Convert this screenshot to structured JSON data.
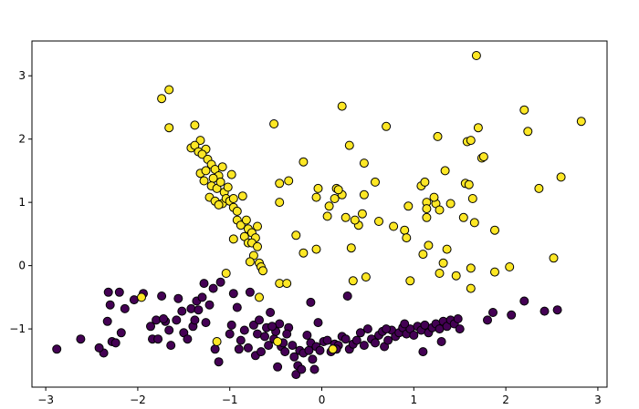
{
  "chart_data": {
    "type": "scatter",
    "title": "",
    "xlabel": "",
    "ylabel": "",
    "xlim": [
      -3.15,
      3.1
    ],
    "ylim": [
      -1.92,
      3.55
    ],
    "xticks": [
      -3,
      -2,
      -1,
      0,
      1,
      2,
      3
    ],
    "yticks": [
      -1,
      0,
      1,
      2,
      3
    ],
    "xtick_labels": [
      "−3",
      "−2",
      "−1",
      "0",
      "1",
      "2",
      "3"
    ],
    "ytick_labels": [
      "−1",
      "0",
      "1",
      "2",
      "3"
    ],
    "grid": false,
    "legend": "none",
    "point_edge_color": "#000000",
    "series": [
      {
        "class": 0,
        "color": "#440154",
        "points": [
          [
            -2.88,
            -1.32
          ],
          [
            -2.62,
            -1.16
          ],
          [
            -2.37,
            -1.38
          ],
          [
            -2.33,
            -0.88
          ],
          [
            -2.32,
            -0.42
          ],
          [
            -2.3,
            -0.62
          ],
          [
            -2.28,
            -1.2
          ],
          [
            -2.24,
            -1.22
          ],
          [
            -2.2,
            -0.42
          ],
          [
            -2.18,
            -1.06
          ],
          [
            -2.14,
            -0.68
          ],
          [
            -2.04,
            -0.54
          ],
          [
            -1.94,
            -0.44
          ],
          [
            -1.86,
            -0.96
          ],
          [
            -1.84,
            -1.16
          ],
          [
            -1.8,
            -0.86
          ],
          [
            -1.78,
            -1.16
          ],
          [
            -1.74,
            -0.48
          ],
          [
            -1.7,
            -0.88
          ],
          [
            -1.66,
            -1.02
          ],
          [
            -1.64,
            -1.26
          ],
          [
            -1.58,
            -0.86
          ],
          [
            -1.56,
            -0.52
          ],
          [
            -1.5,
            -1.06
          ],
          [
            -1.46,
            -1.16
          ],
          [
            -1.42,
            -0.68
          ],
          [
            -1.4,
            -0.96
          ],
          [
            -1.38,
            -0.86
          ],
          [
            -1.36,
            -0.56
          ],
          [
            -1.34,
            -0.7
          ],
          [
            -1.3,
            -0.5
          ],
          [
            -1.28,
            -0.28
          ],
          [
            -1.26,
            -0.9
          ],
          [
            -1.22,
            -0.62
          ],
          [
            -1.16,
            -1.32
          ],
          [
            -1.12,
            -1.52
          ],
          [
            -1.1,
            -0.26
          ],
          [
            -1.0,
            -1.08
          ],
          [
            -0.98,
            -0.94
          ],
          [
            -0.92,
            -0.66
          ],
          [
            -0.9,
            -1.32
          ],
          [
            -0.88,
            -1.18
          ],
          [
            -0.84,
            -1.02
          ],
          [
            -0.8,
            -1.3
          ],
          [
            -0.78,
            -0.42
          ],
          [
            -0.74,
            -0.94
          ],
          [
            -0.72,
            -1.42
          ],
          [
            -0.7,
            -1.08
          ],
          [
            -0.68,
            -0.86
          ],
          [
            -0.66,
            -1.36
          ],
          [
            -0.62,
            -1.12
          ],
          [
            -0.6,
            -0.98
          ],
          [
            -0.58,
            -1.26
          ],
          [
            -0.56,
            -0.74
          ],
          [
            -0.52,
            -1.16
          ],
          [
            -0.5,
            -1.04
          ],
          [
            -0.48,
            -1.6
          ],
          [
            -0.46,
            -0.92
          ],
          [
            -0.44,
            -1.28
          ],
          [
            -0.42,
            -1.22
          ],
          [
            -0.4,
            -1.36
          ],
          [
            -0.36,
            -0.98
          ],
          [
            -0.32,
            -1.26
          ],
          [
            -0.3,
            -1.44
          ],
          [
            -0.28,
            -1.72
          ],
          [
            -0.26,
            -1.58
          ],
          [
            -0.24,
            -1.34
          ],
          [
            -0.22,
            -1.64
          ],
          [
            -0.2,
            -1.38
          ],
          [
            -0.16,
            -1.1
          ],
          [
            -0.14,
            -1.34
          ],
          [
            -0.12,
            -1.22
          ],
          [
            -0.1,
            -1.48
          ],
          [
            -0.08,
            -1.64
          ],
          [
            -0.06,
            -1.28
          ],
          [
            -0.04,
            -0.9
          ],
          [
            -0.02,
            -1.34
          ],
          [
            0.02,
            -1.2
          ],
          [
            0.06,
            -1.18
          ],
          [
            0.1,
            -1.36
          ],
          [
            0.14,
            -1.24
          ],
          [
            0.18,
            -1.26
          ],
          [
            0.22,
            -1.12
          ],
          [
            0.26,
            -1.16
          ],
          [
            0.3,
            -1.32
          ],
          [
            0.34,
            -1.24
          ],
          [
            0.38,
            -1.18
          ],
          [
            0.42,
            -1.06
          ],
          [
            0.46,
            -1.26
          ],
          [
            0.5,
            -1.0
          ],
          [
            0.54,
            -1.16
          ],
          [
            0.58,
            -1.22
          ],
          [
            0.62,
            -1.1
          ],
          [
            0.66,
            -1.04
          ],
          [
            0.68,
            -1.28
          ],
          [
            0.72,
            -1.18
          ],
          [
            0.76,
            -1.02
          ],
          [
            0.8,
            -1.12
          ],
          [
            0.84,
            -1.06
          ],
          [
            0.88,
            -0.98
          ],
          [
            0.92,
            -1.08
          ],
          [
            0.96,
            -1.0
          ],
          [
            1.0,
            -1.1
          ],
          [
            1.04,
            -0.96
          ],
          [
            1.08,
            -1.02
          ],
          [
            1.12,
            -0.94
          ],
          [
            1.16,
            -1.06
          ],
          [
            1.2,
            -0.98
          ],
          [
            1.24,
            -0.92
          ],
          [
            1.28,
            -1.0
          ],
          [
            1.32,
            -0.88
          ],
          [
            1.36,
            -0.96
          ],
          [
            1.4,
            -0.86
          ],
          [
            1.44,
            -0.92
          ],
          [
            1.48,
            -0.84
          ],
          [
            1.1,
            -1.36
          ],
          [
            1.3,
            -1.2
          ],
          [
            1.5,
            -1.0
          ],
          [
            0.9,
            -0.92
          ],
          [
            0.7,
            -1.0
          ],
          [
            1.8,
            -0.86
          ],
          [
            1.86,
            -0.74
          ],
          [
            2.06,
            -0.78
          ],
          [
            2.2,
            -0.56
          ],
          [
            2.42,
            -0.72
          ],
          [
            2.56,
            -0.7
          ],
          [
            0.28,
            -0.48
          ],
          [
            0.16,
            -1.32
          ],
          [
            -0.12,
            -0.58
          ],
          [
            -0.38,
            -1.08
          ],
          [
            -0.54,
            -0.96
          ],
          [
            -0.96,
            -0.44
          ],
          [
            -1.18,
            -0.36
          ],
          [
            -1.52,
            -0.72
          ],
          [
            -2.42,
            -1.3
          ],
          [
            -1.72,
            -0.84
          ]
        ]
      },
      {
        "class": 1,
        "color": "#fde725",
        "points": [
          [
            -1.66,
            2.78
          ],
          [
            -1.74,
            2.64
          ],
          [
            -1.66,
            2.18
          ],
          [
            -1.38,
            2.22
          ],
          [
            -1.42,
            1.86
          ],
          [
            -1.32,
            1.98
          ],
          [
            -1.26,
            1.84
          ],
          [
            -1.38,
            1.9
          ],
          [
            -1.34,
            1.8
          ],
          [
            -1.3,
            1.76
          ],
          [
            -1.24,
            1.68
          ],
          [
            -1.2,
            1.6
          ],
          [
            -1.32,
            1.46
          ],
          [
            -1.16,
            1.52
          ],
          [
            -1.12,
            1.42
          ],
          [
            -1.08,
            1.56
          ],
          [
            -1.26,
            1.5
          ],
          [
            -1.18,
            1.38
          ],
          [
            -1.2,
            1.26
          ],
          [
            -1.14,
            1.22
          ],
          [
            -1.1,
            1.32
          ],
          [
            -1.06,
            1.16
          ],
          [
            -1.02,
            1.24
          ],
          [
            -0.98,
            1.44
          ],
          [
            -1.22,
            1.08
          ],
          [
            -1.16,
            1.02
          ],
          [
            -1.08,
            0.98
          ],
          [
            -1.04,
            1.06
          ],
          [
            -1.0,
            1.02
          ],
          [
            -0.96,
            0.92
          ],
          [
            -0.92,
            0.86
          ],
          [
            -0.96,
            1.06
          ],
          [
            -1.12,
            0.96
          ],
          [
            -0.86,
            1.1
          ],
          [
            -0.92,
            0.72
          ],
          [
            -0.88,
            0.64
          ],
          [
            -0.82,
            0.72
          ],
          [
            -0.8,
            0.58
          ],
          [
            -0.76,
            0.52
          ],
          [
            -0.72,
            0.44
          ],
          [
            -0.7,
            0.62
          ],
          [
            -0.84,
            0.46
          ],
          [
            -0.8,
            0.36
          ],
          [
            -0.76,
            0.36
          ],
          [
            -0.7,
            0.3
          ],
          [
            -0.74,
            0.16
          ],
          [
            -0.78,
            0.06
          ],
          [
            -0.68,
            0.04
          ],
          [
            -0.66,
            -0.02
          ],
          [
            -0.64,
            -0.08
          ],
          [
            -0.96,
            0.42
          ],
          [
            -1.04,
            -0.12
          ],
          [
            -0.68,
            -0.5
          ],
          [
            -0.46,
            -0.28
          ],
          [
            -0.38,
            -0.28
          ],
          [
            -0.46,
            1.3
          ],
          [
            -0.36,
            1.34
          ],
          [
            -0.2,
            1.64
          ],
          [
            -0.46,
            1.0
          ],
          [
            -0.28,
            0.48
          ],
          [
            -0.2,
            0.2
          ],
          [
            -0.06,
            1.08
          ],
          [
            -0.06,
            0.26
          ],
          [
            0.16,
            1.22
          ],
          [
            0.22,
            1.12
          ],
          [
            0.26,
            0.76
          ],
          [
            0.3,
            1.9
          ],
          [
            0.22,
            2.52
          ],
          [
            0.06,
            0.78
          ],
          [
            0.14,
            1.06
          ],
          [
            0.4,
            0.64
          ],
          [
            0.32,
            0.28
          ],
          [
            0.34,
            -0.24
          ],
          [
            0.48,
            -0.18
          ],
          [
            0.46,
            1.12
          ],
          [
            0.46,
            1.62
          ],
          [
            0.62,
            0.7
          ],
          [
            0.7,
            2.2
          ],
          [
            0.78,
            0.62
          ],
          [
            0.9,
            0.56
          ],
          [
            0.92,
            0.44
          ],
          [
            0.94,
            0.94
          ],
          [
            1.08,
            1.26
          ],
          [
            1.12,
            1.32
          ],
          [
            1.14,
            1.0
          ],
          [
            1.14,
            0.9
          ],
          [
            1.14,
            0.76
          ],
          [
            1.1,
            0.18
          ],
          [
            1.16,
            0.32
          ],
          [
            0.96,
            -0.24
          ],
          [
            1.24,
            0.98
          ],
          [
            1.22,
            1.08
          ],
          [
            1.28,
            0.88
          ],
          [
            1.26,
            2.04
          ],
          [
            1.34,
            1.5
          ],
          [
            1.4,
            0.98
          ],
          [
            1.36,
            0.26
          ],
          [
            1.32,
            0.04
          ],
          [
            1.28,
            -0.12
          ],
          [
            1.46,
            -0.16
          ],
          [
            1.54,
            0.76
          ],
          [
            1.56,
            1.3
          ],
          [
            1.58,
            1.96
          ],
          [
            1.62,
            1.98
          ],
          [
            1.6,
            1.28
          ],
          [
            1.64,
            1.06
          ],
          [
            1.7,
            2.18
          ],
          [
            1.74,
            1.7
          ],
          [
            1.66,
            0.68
          ],
          [
            1.62,
            -0.04
          ],
          [
            1.62,
            -0.36
          ],
          [
            1.76,
            1.72
          ],
          [
            1.88,
            0.56
          ],
          [
            1.88,
            -0.1
          ],
          [
            2.04,
            -0.02
          ],
          [
            2.2,
            2.46
          ],
          [
            2.24,
            2.12
          ],
          [
            2.36,
            1.22
          ],
          [
            2.52,
            0.12
          ],
          [
            2.6,
            1.4
          ],
          [
            2.82,
            2.28
          ],
          [
            1.68,
            3.32
          ],
          [
            -0.52,
            2.24
          ],
          [
            -1.14,
            -1.2
          ],
          [
            -0.48,
            -1.2
          ],
          [
            -1.96,
            -0.5
          ],
          [
            0.12,
            -1.32
          ],
          [
            0.18,
            1.2
          ],
          [
            0.08,
            0.94
          ],
          [
            0.58,
            1.32
          ],
          [
            0.44,
            0.82
          ],
          [
            -0.04,
            1.22
          ],
          [
            0.36,
            0.72
          ],
          [
            -1.28,
            1.34
          ]
        ]
      }
    ]
  }
}
